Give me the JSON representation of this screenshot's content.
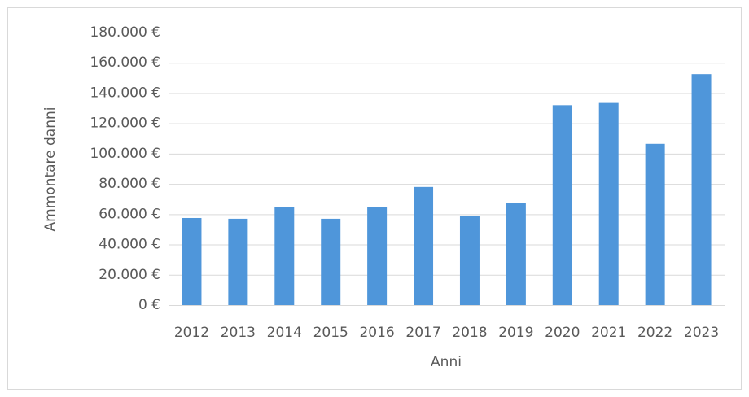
{
  "chart_data": {
    "type": "bar",
    "x_label": "Anni",
    "y_label": "Ammontare danni",
    "categories": [
      "2012",
      "2013",
      "2014",
      "2015",
      "2016",
      "2017",
      "2018",
      "2019",
      "2020",
      "2021",
      "2022",
      "2023"
    ],
    "values": [
      57500,
      57000,
      65000,
      57000,
      64500,
      78000,
      59000,
      67500,
      132000,
      134000,
      106500,
      152500
    ],
    "color": "#4f96da",
    "ylim": [
      0,
      180000
    ],
    "yticks": [
      {
        "value": 0,
        "label": "0 €"
      },
      {
        "value": 20000,
        "label": "20.000 €"
      },
      {
        "value": 40000,
        "label": "40.000 €"
      },
      {
        "value": 60000,
        "label": "60.000 €"
      },
      {
        "value": 80000,
        "label": "80.000 €"
      },
      {
        "value": 100000,
        "label": "100.000 €"
      },
      {
        "value": 120000,
        "label": "120.000 €"
      },
      {
        "value": 140000,
        "label": "140.000 €"
      },
      {
        "value": 160000,
        "label": "160.000 €"
      },
      {
        "value": 180000,
        "label": "180.000 €"
      }
    ],
    "grid": true
  }
}
